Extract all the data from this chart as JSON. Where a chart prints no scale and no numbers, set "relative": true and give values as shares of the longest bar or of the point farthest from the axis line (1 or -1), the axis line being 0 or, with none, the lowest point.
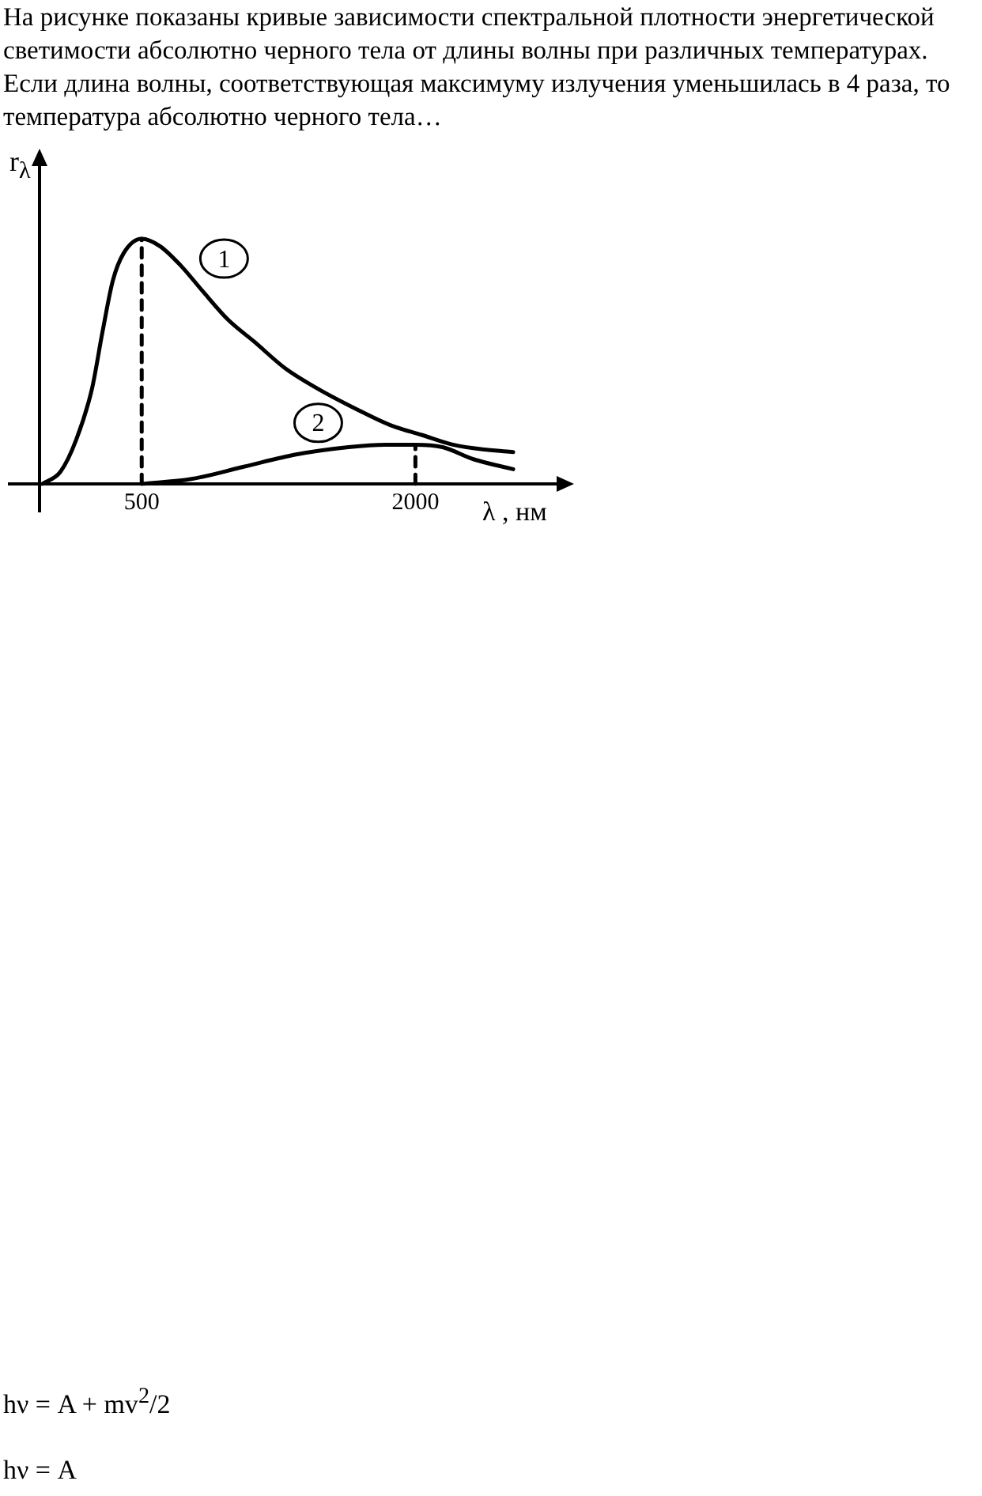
{
  "chart_data": {
    "type": "line",
    "title": "На рисунке показаны кривые зависимости спектральной плотности энергетической светимости абсолютно черного тела от длины волны при различных температурах. Если длина волны, соответствующая максимуму излучения уменьшилась в 4 раза, то температура абсолютно черного тела…",
    "xlabel": "λ , нм",
    "ylabel": "r$_{λ}$",
    "relative": true,
    "xlim": [
      -60,
      2800
    ],
    "xticks": [
      500,
      2000
    ],
    "grid": false,
    "legend": false,
    "marker": "none",
    "series": [
      {
        "name": "1",
        "color": "#000000",
        "line_style": "solid",
        "x": [
          -45,
          55,
          141,
          228,
          285,
          342,
          400,
          500,
          600,
          715,
          830,
          973,
          1117,
          1289,
          1461,
          1690,
          1862,
          2034,
          2206,
          2379,
          2536
        ],
        "values": [
          0,
          0.05,
          0.18,
          0.39,
          0.62,
          0.83,
          0.94,
          1,
          0.97,
          0.89,
          0.79,
          0.67,
          0.58,
          0.47,
          0.39,
          0.3,
          0.24,
          0.2,
          0.16,
          0.14,
          0.13
        ]
      },
      {
        "name": "2",
        "color": "#000000",
        "line_style": "solid",
        "x": [
          500,
          772,
          1059,
          1346,
          1633,
          1834,
          2000,
          2149,
          2321,
          2536
        ],
        "values": [
          0,
          0.02,
          0.07,
          0.12,
          0.15,
          0.16,
          0.16,
          0.15,
          0.1,
          0.06
        ]
      },
      {
        "color": "#000000",
        "line_style": "dashed",
        "x": [
          500,
          500
        ],
        "values": [
          0,
          1
        ]
      },
      {
        "color": "#000000",
        "line_style": "dashed",
        "x": [
          2000,
          2000
        ],
        "values": [
          0,
          0.16
        ]
      }
    ],
    "annotations": [
      "hν = A + mv$^{2}$/2",
      "hν = A"
    ]
  }
}
